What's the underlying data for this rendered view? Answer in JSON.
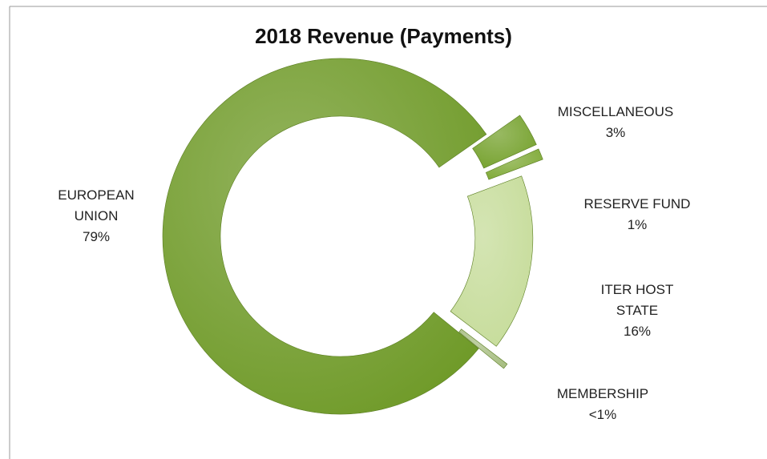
{
  "chart_data": {
    "type": "doughnut",
    "title": "2018 Revenue (Payments)",
    "categories": [
      "MISCELLANEOUS",
      "RESERVE FUND",
      "ITER HOST STATE",
      "MEMBERSHIP",
      "EUROPEAN UNION"
    ],
    "values": [
      3,
      1,
      16,
      0.5,
      79
    ],
    "value_labels": [
      "3%",
      "1%",
      "16%",
      "<1%",
      "79%"
    ],
    "colors": [
      "#76a22e",
      "#80aa38",
      "#c6dc9a",
      "#a9bf84",
      "#6f9a28"
    ]
  }
}
